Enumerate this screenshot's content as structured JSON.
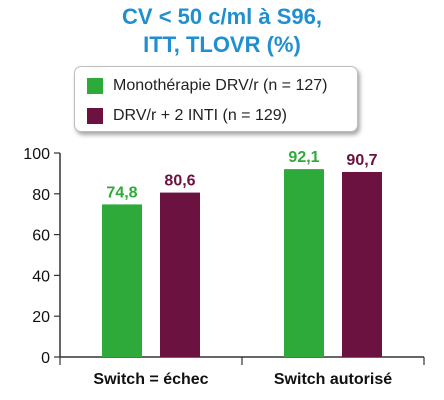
{
  "title_line1": "CV < 50 c/ml à S96,",
  "title_line2": "ITT, TLOVR (%)",
  "chart_data": {
    "type": "bar",
    "categories": [
      "Switch = échec",
      "Switch autorisé"
    ],
    "series": [
      {
        "name": "Monothérapie DRV/r (n = 127)",
        "color": "#2eaa3a",
        "label_color": "#2eaa3a",
        "values": [
          74.8,
          92.1
        ],
        "labels": [
          "74,8",
          "92,1"
        ]
      },
      {
        "name": "DRV/r + 2 INTI (n = 129)",
        "color": "#6b1240",
        "label_color": "#6b1240",
        "values": [
          80.6,
          90.7
        ],
        "labels": [
          "80,6",
          "90,7"
        ]
      }
    ],
    "series_label_colors_note": "",
    "yticks": [
      0,
      20,
      40,
      60,
      80,
      100
    ],
    "ylim": [
      0,
      100
    ],
    "legend_position": "top",
    "grid": false
  }
}
